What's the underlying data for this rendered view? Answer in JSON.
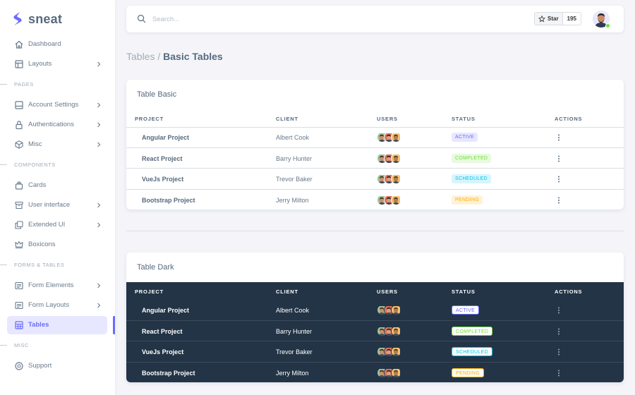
{
  "brand": {
    "name": "sneat",
    "color": "#696cff"
  },
  "sidebar": {
    "items": [
      {
        "label": "Dashboard",
        "icon": "home-icon",
        "chevron": false,
        "active": false
      },
      {
        "label": "Layouts",
        "icon": "layout-icon",
        "chevron": true,
        "active": false
      },
      {
        "header": "PAGES"
      },
      {
        "label": "Account Settings",
        "icon": "dock-icon",
        "chevron": true,
        "active": false
      },
      {
        "label": "Authentications",
        "icon": "lock-icon",
        "chevron": true,
        "active": false
      },
      {
        "label": "Misc",
        "icon": "cube-icon",
        "chevron": true,
        "active": false
      },
      {
        "header": "COMPONENTS"
      },
      {
        "label": "Cards",
        "icon": "collection-icon",
        "chevron": false,
        "active": false
      },
      {
        "label": "User interface",
        "icon": "box-icon",
        "chevron": true,
        "active": false
      },
      {
        "label": "Extended UI",
        "icon": "copy-icon",
        "chevron": true,
        "active": false
      },
      {
        "label": "Boxicons",
        "icon": "crown-icon",
        "chevron": false,
        "active": false
      },
      {
        "header": "FORMS & TABLES"
      },
      {
        "label": "Form Elements",
        "icon": "detail-icon",
        "chevron": true,
        "active": false
      },
      {
        "label": "Form Layouts",
        "icon": "detail-icon",
        "chevron": true,
        "active": false
      },
      {
        "label": "Tables",
        "icon": "table-icon",
        "chevron": false,
        "active": true
      },
      {
        "header": "MISC"
      },
      {
        "label": "Support",
        "icon": "support-icon",
        "chevron": false,
        "active": false
      }
    ]
  },
  "navbar": {
    "search_placeholder": "Search...",
    "star_label": "Star",
    "star_count": "195"
  },
  "breadcrumb": {
    "parent": "Tables /",
    "current": "Basic Tables"
  },
  "table_columns": [
    "PROJECT",
    "CLIENT",
    "USERS",
    "STATUS",
    "ACTIONS"
  ],
  "rows": [
    {
      "project": "Angular Project",
      "client": "Albert Cook",
      "status": "ACTIVE",
      "status_color": "#696cff",
      "status_bg": "#e7e7ff"
    },
    {
      "project": "React Project",
      "client": "Barry Hunter",
      "status": "COMPLETED",
      "status_color": "#71dd37",
      "status_bg": "#e8fadf"
    },
    {
      "project": "VueJs Project",
      "client": "Trevor Baker",
      "status": "SCHEDULED",
      "status_color": "#03c3ec",
      "status_bg": "#d7f5fc"
    },
    {
      "project": "Bootstrap Project",
      "client": "Jerry Milton",
      "status": "PENDING",
      "status_color": "#ffab00",
      "status_bg": "#fff2d6"
    }
  ],
  "card_basic": {
    "title": "Table Basic"
  },
  "card_dark": {
    "title": "Table Dark"
  },
  "colors": {
    "accent": "#696cff",
    "dark_table": "#233446"
  }
}
